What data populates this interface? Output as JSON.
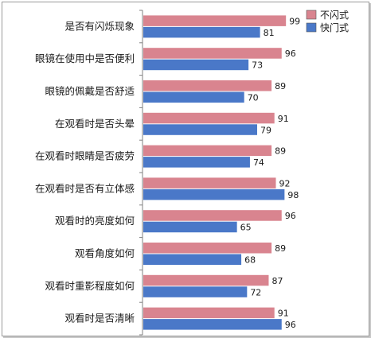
{
  "chart_data": {
    "type": "bar",
    "orientation": "horizontal",
    "categories": [
      "是否有闪烁现象",
      "眼镜在使用中是否便利",
      "眼镜的佩戴是否舒适",
      "在观看时是否头晕",
      "在观看时眼睛是否疲劳",
      "在观看时是否有立体感",
      "观看时的亮度如何",
      "观看角度如何",
      "观看时重影程度如何",
      "观看时是否清晰"
    ],
    "series": [
      {
        "name": "不闪式",
        "color": "#d9848f",
        "values": [
          99,
          96,
          89,
          91,
          89,
          92,
          96,
          89,
          87,
          91
        ]
      },
      {
        "name": "快门式",
        "color": "#4a78c8",
        "values": [
          81,
          73,
          70,
          79,
          74,
          98,
          65,
          68,
          72,
          96
        ]
      }
    ],
    "xlim": [
      0,
      100
    ],
    "legend_position": "top-right",
    "grid": false
  }
}
